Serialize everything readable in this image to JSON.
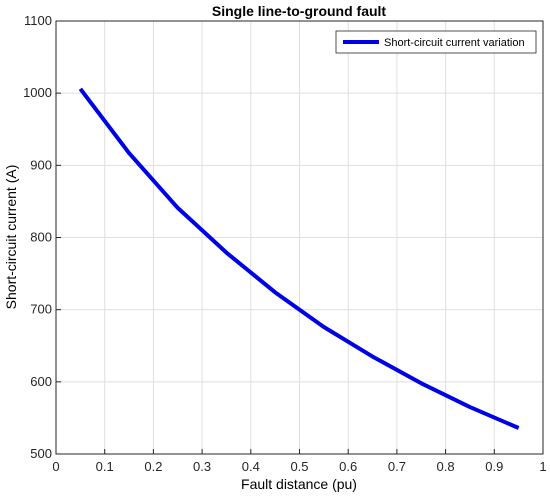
{
  "chart_data": {
    "type": "line",
    "title": "Single line-to-ground fault",
    "xlabel": "Fault distance (pu)",
    "ylabel": "Short-circuit current (A)",
    "xlim": [
      0,
      1
    ],
    "ylim": [
      500,
      1100
    ],
    "xticks": [
      0,
      0.1,
      0.2,
      0.3,
      0.4,
      0.5,
      0.6,
      0.7,
      0.8,
      0.9,
      1
    ],
    "xtick_labels": [
      "0",
      "0.1",
      "0.2",
      "0.3",
      "0.4",
      "0.5",
      "0.6",
      "0.7",
      "0.8",
      "0.9",
      "1"
    ],
    "yticks": [
      500,
      600,
      700,
      800,
      900,
      1000,
      1100
    ],
    "ytick_labels": [
      "500",
      "600",
      "700",
      "800",
      "900",
      "1000",
      "1100"
    ],
    "grid": true,
    "legend_position": "top-right",
    "series": [
      {
        "name": "Short-circuit current variation",
        "color": "#0000e6",
        "x": [
          0.05,
          0.15,
          0.25,
          0.35,
          0.45,
          0.55,
          0.65,
          0.75,
          0.85,
          0.95
        ],
        "y": [
          1006,
          917,
          841,
          779,
          724,
          676,
          635,
          598,
          565,
          536
        ]
      }
    ]
  }
}
